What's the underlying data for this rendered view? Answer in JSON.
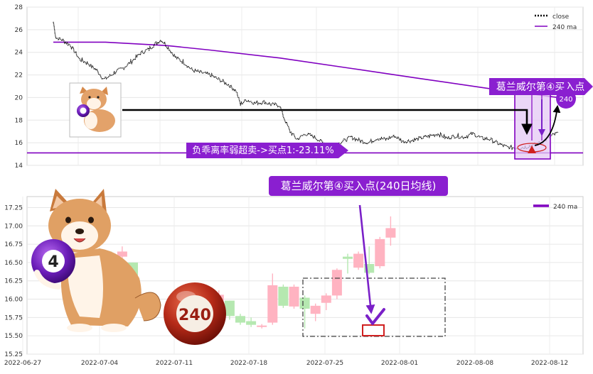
{
  "chart_data": [
    {
      "type": "line",
      "title": "",
      "xlabel": "",
      "ylabel": "",
      "ylim": [
        14,
        28
      ],
      "yticks": [
        "14",
        "16",
        "18",
        "20",
        "22",
        "24",
        "26",
        "28"
      ],
      "grid": true,
      "legend": {
        "placement": "top-right",
        "entries": [
          "close",
          "240 ma"
        ]
      },
      "series": [
        {
          "name": "close",
          "style": "dotted",
          "color": "#000000",
          "points": [
            [
              0,
              26.7
            ],
            [
              3,
              25.3
            ],
            [
              10,
              25.1
            ],
            [
              20,
              24.6
            ],
            [
              30,
              23.4
            ],
            [
              40,
              23.0
            ],
            [
              50,
              22.4
            ],
            [
              58,
              21.6
            ],
            [
              65,
              21.9
            ],
            [
              72,
              22.3
            ],
            [
              80,
              22.6
            ],
            [
              90,
              23.2
            ],
            [
              100,
              23.9
            ],
            [
              110,
              24.3
            ],
            [
              118,
              24.8
            ],
            [
              124,
              25.1
            ],
            [
              130,
              24.6
            ],
            [
              140,
              23.6
            ],
            [
              150,
              23.1
            ],
            [
              160,
              22.4
            ],
            [
              170,
              22.2
            ],
            [
              180,
              22.0
            ],
            [
              190,
              21.6
            ],
            [
              200,
              21.2
            ],
            [
              210,
              20.6
            ],
            [
              215,
              19.4
            ],
            [
              222,
              19.8
            ],
            [
              232,
              19.5
            ],
            [
              242,
              19.6
            ],
            [
              250,
              19.4
            ],
            [
              260,
              19.3
            ],
            [
              265,
              18.2
            ],
            [
              272,
              17.0
            ],
            [
              280,
              16.3
            ],
            [
              290,
              16.8
            ],
            [
              300,
              16.5
            ],
            [
              310,
              16.0
            ],
            [
              322,
              15.8
            ],
            [
              332,
              16.1
            ],
            [
              342,
              16.5
            ],
            [
              352,
              16.2
            ],
            [
              362,
              16.0
            ],
            [
              372,
              16.4
            ],
            [
              382,
              16.3
            ],
            [
              392,
              16.6
            ],
            [
              402,
              16.1
            ],
            [
              412,
              16.2
            ],
            [
              422,
              16.4
            ],
            [
              432,
              16.6
            ],
            [
              442,
              16.8
            ],
            [
              452,
              16.4
            ],
            [
              462,
              16.6
            ],
            [
              472,
              16.5
            ],
            [
              482,
              16.8
            ],
            [
              492,
              16.4
            ],
            [
              502,
              16.3
            ],
            [
              512,
              15.9
            ],
            [
              522,
              15.6
            ],
            [
              532,
              15.55
            ],
            [
              542,
              15.6
            ],
            [
              552,
              15.8
            ],
            [
              562,
              16.1
            ],
            [
              572,
              16.6
            ],
            [
              580,
              16.9
            ]
          ]
        },
        {
          "name": "240 ma",
          "style": "solid",
          "color": "#8000c0",
          "points": [
            [
              0,
              24.9
            ],
            [
              60,
              24.9
            ],
            [
              130,
              24.6
            ],
            [
              180,
              24.2
            ],
            [
              260,
              23.5
            ],
            [
              340,
              22.6
            ],
            [
              420,
              21.7
            ],
            [
              500,
              20.8
            ],
            [
              560,
              20.2
            ],
            [
              580,
              20.0
            ]
          ]
        }
      ],
      "reference_line": {
        "value": 15.1,
        "color": "#8000c0"
      },
      "annotations": [
        {
          "id": "deviation",
          "text": "负乖离率弱超卖->买点1:-23.11%"
        },
        {
          "id": "buy4",
          "text": "葛兰威尔第④买入点"
        },
        {
          "id": "circle240",
          "text": "240"
        }
      ]
    },
    {
      "type": "candlestick",
      "title": "",
      "xlabel": "",
      "ylabel": "",
      "ylim": [
        15.25,
        17.4
      ],
      "yticks": [
        "15.25",
        "15.50",
        "15.75",
        "16.00",
        "16.25",
        "16.50",
        "16.75",
        "17.00",
        "17.25"
      ],
      "xticks": [
        "2022-06-27",
        "2022-07-04",
        "2022-07-11",
        "2022-07-18",
        "2022-07-25",
        "2022-08-01",
        "2022-08-08",
        "2022-08-12"
      ],
      "grid": true,
      "legend": {
        "placement": "top-right",
        "entries": [
          "240 ma"
        ]
      },
      "up_color": "#ffb3c1",
      "down_color": "#b5e8b0",
      "ma_color": "#8000c0",
      "candles": [
        {
          "day": 7,
          "open": 16.58,
          "close": 16.6,
          "high": 16.65,
          "low": 16.38
        },
        {
          "day": 8,
          "open": 16.6,
          "close": 16.53,
          "high": 16.65,
          "low": 16.48
        },
        {
          "day": 9,
          "open": 16.58,
          "close": 16.65,
          "high": 16.72,
          "low": 16.55
        },
        {
          "day": 10,
          "open": 16.5,
          "close": 16.22,
          "high": 16.5,
          "low": 16.2
        },
        {
          "day": 14,
          "open": 15.77,
          "close": 15.79,
          "high": 15.85,
          "low": 15.65
        },
        {
          "day": 15,
          "open": 15.78,
          "close": 15.57,
          "high": 15.8,
          "low": 15.55
        },
        {
          "day": 16,
          "open": 15.62,
          "close": 15.9,
          "high": 15.92,
          "low": 15.55
        },
        {
          "day": 17,
          "open": 15.85,
          "close": 16.05,
          "high": 16.1,
          "low": 15.8
        },
        {
          "day": 18,
          "open": 15.98,
          "close": 16.06,
          "high": 16.12,
          "low": 15.97
        },
        {
          "day": 19,
          "open": 15.98,
          "close": 15.77,
          "high": 15.98,
          "low": 15.72
        },
        {
          "day": 20,
          "open": 15.77,
          "close": 15.68,
          "high": 15.8,
          "low": 15.65
        },
        {
          "day": 21,
          "open": 15.7,
          "close": 15.65,
          "high": 15.75,
          "low": 15.62
        },
        {
          "day": 22,
          "open": 15.64,
          "close": 15.64,
          "high": 15.66,
          "low": 15.6
        },
        {
          "day": 23,
          "open": 15.68,
          "close": 16.19,
          "high": 16.35,
          "low": 15.65
        },
        {
          "day": 24,
          "open": 16.17,
          "close": 15.91,
          "high": 16.2,
          "low": 15.88
        },
        {
          "day": 25,
          "open": 15.9,
          "close": 16.17,
          "high": 16.2,
          "low": 15.87
        },
        {
          "day": 26,
          "open": 16.02,
          "close": 15.87,
          "high": 16.05,
          "low": 15.6
        },
        {
          "day": 27,
          "open": 15.8,
          "close": 15.91,
          "high": 15.94,
          "low": 15.7
        },
        {
          "day": 28,
          "open": 15.95,
          "close": 16.05,
          "high": 16.08,
          "low": 15.85
        },
        {
          "day": 29,
          "open": 16.05,
          "close": 16.4,
          "high": 16.42,
          "low": 16.0
        },
        {
          "day": 30,
          "open": 16.58,
          "close": 16.55,
          "high": 16.62,
          "low": 16.35
        },
        {
          "day": 31,
          "open": 16.43,
          "close": 16.62,
          "high": 16.65,
          "low": 16.4
        },
        {
          "day": 32,
          "open": 16.48,
          "close": 16.36,
          "high": 16.72,
          "low": 16.34
        },
        {
          "day": 33,
          "open": 16.45,
          "close": 16.82,
          "high": 16.85,
          "low": 16.42
        },
        {
          "day": 34,
          "open": 16.84,
          "close": 16.97,
          "high": 17.13,
          "low": 16.73
        }
      ],
      "annotations": [
        {
          "id": "buy4-label",
          "text": "葛兰威尔第④买入点(240日均线)"
        },
        {
          "id": "ball-4",
          "text": "4"
        },
        {
          "id": "ball-240",
          "text": "240"
        }
      ]
    }
  ]
}
